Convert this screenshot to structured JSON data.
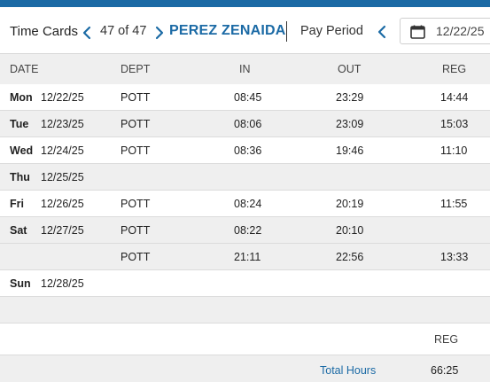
{
  "header": {
    "title": "Time Cards",
    "record_counter": "47 of 47",
    "employee_name": "PEREZ ZENAIDA",
    "pay_period_label": "Pay Period",
    "pay_period_start": "12/22/25"
  },
  "columns": {
    "date": "DATE",
    "dept": "DEPT",
    "in": "IN",
    "out": "OUT",
    "reg": "REG"
  },
  "rows": [
    {
      "day": "Mon",
      "date": "12/22/25",
      "dept": "POTT",
      "in": "08:45",
      "out": "23:29",
      "reg": "14:44"
    },
    {
      "day": "Tue",
      "date": "12/23/25",
      "dept": "POTT",
      "in": "08:06",
      "out": "23:09",
      "reg": "15:03"
    },
    {
      "day": "Wed",
      "date": "12/24/25",
      "dept": "POTT",
      "in": "08:36",
      "out": "19:46",
      "reg": "11:10"
    },
    {
      "day": "Thu",
      "date": "12/25/25",
      "dept": "",
      "in": "",
      "out": "",
      "reg": ""
    },
    {
      "day": "Fri",
      "date": "12/26/25",
      "dept": "POTT",
      "in": "08:24",
      "out": "20:19",
      "reg": "11:55"
    },
    {
      "day": "Sat",
      "date": "12/27/25",
      "dept": "POTT",
      "in": "08:22",
      "out": "20:10",
      "reg": ""
    },
    {
      "day": "",
      "date": "",
      "dept": "POTT",
      "in": "21:11",
      "out": "22:56",
      "reg": "13:33"
    },
    {
      "day": "Sun",
      "date": "12/28/25",
      "dept": "",
      "in": "",
      "out": "",
      "reg": ""
    }
  ],
  "summary": {
    "reg_header": "REG",
    "total_label": "Total Hours",
    "total_reg": "66:25"
  },
  "colors": {
    "accent": "#1b6aa5",
    "row_alt": "#efefef"
  },
  "icons": {
    "prev": "chevron-left-icon",
    "next": "chevron-right-icon",
    "calendar": "calendar-icon"
  }
}
